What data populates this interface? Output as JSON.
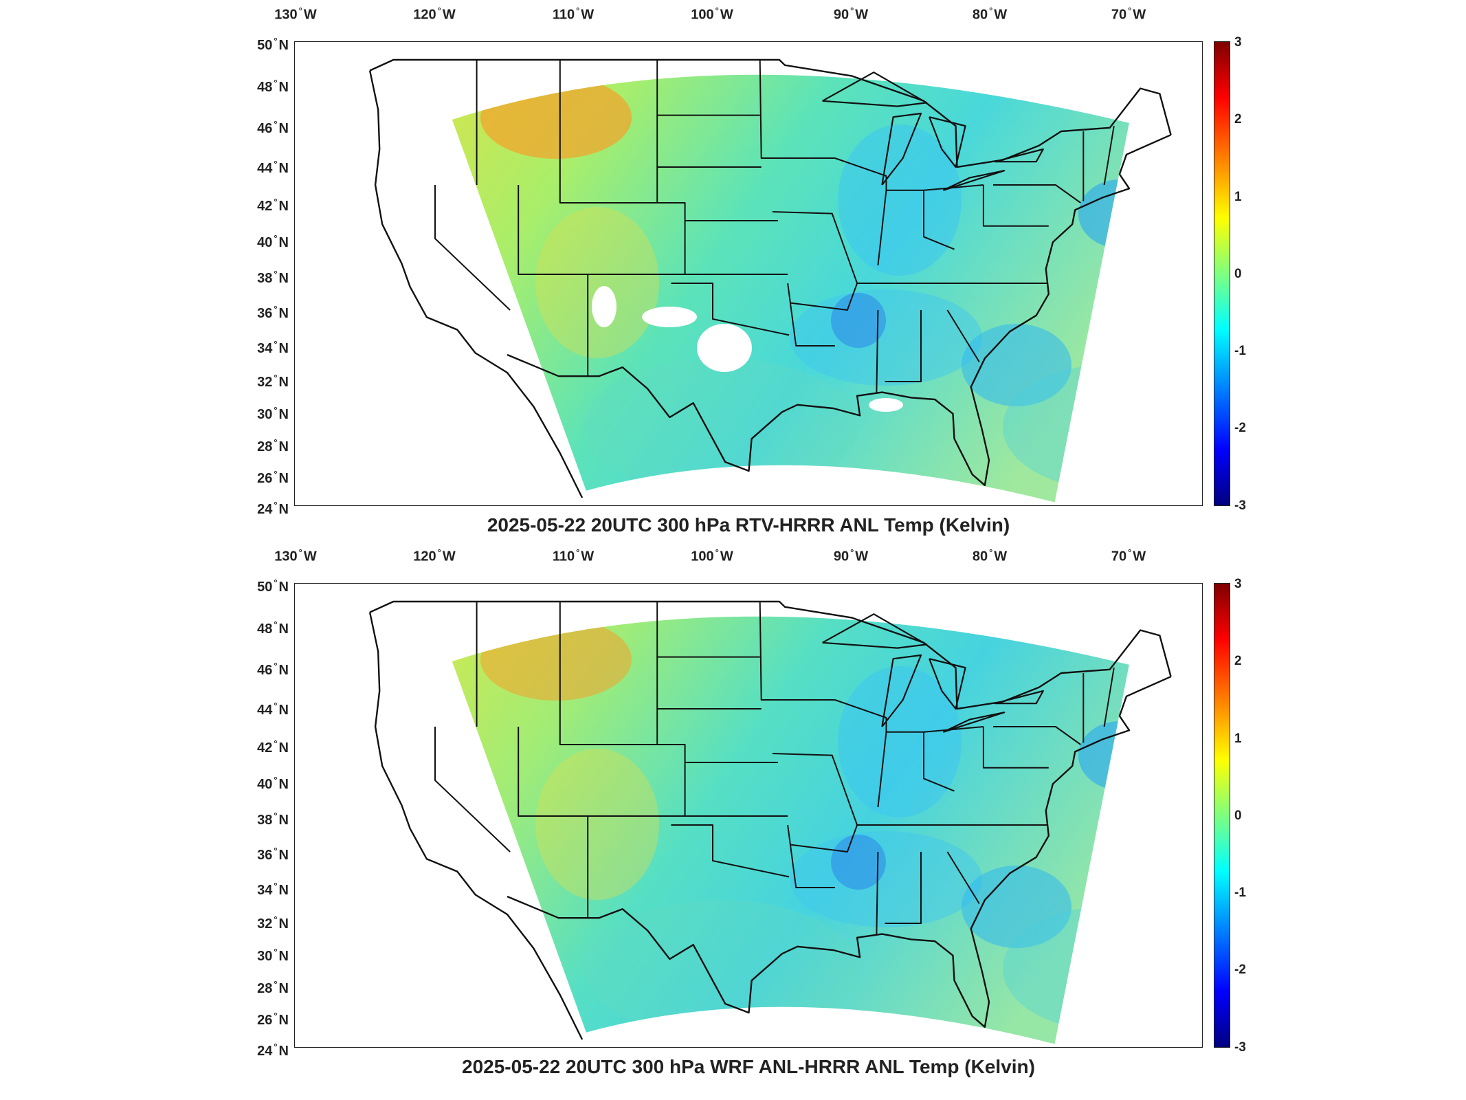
{
  "panels": [
    {
      "title": "2025-05-22 20UTC 300 hPa RTV-HRRR ANL Temp (Kelvin)",
      "field_tone": "warm-west",
      "missing_patches": true
    },
    {
      "title": "2025-05-22 20UTC 300 hPa WRF ANL-HRRR ANL Temp (Kelvin)",
      "field_tone": "smooth",
      "missing_patches": false
    }
  ],
  "axes": {
    "lon_labels": [
      "130",
      "120",
      "110",
      "100",
      "90",
      "80",
      "70"
    ],
    "lon_suffix": "W",
    "lat_labels": [
      "50",
      "48",
      "46",
      "44",
      "42",
      "40",
      "38",
      "36",
      "34",
      "32",
      "30",
      "28",
      "26",
      "24"
    ],
    "lat_suffix": "N"
  },
  "colorbar": {
    "ticks": [
      "3",
      "2",
      "1",
      "0",
      "-1",
      "-2",
      "-3"
    ],
    "range": [
      -3,
      3
    ],
    "colormap": "jet"
  },
  "colors": {
    "land_outline": "#111111",
    "map_background": "#ffffff"
  }
}
